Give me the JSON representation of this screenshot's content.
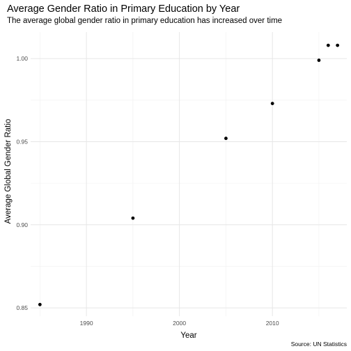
{
  "chart_data": {
    "type": "scatter",
    "title": "Average Gender Ratio in Primary Education by Year",
    "subtitle": "The average global gender ratio in primary education has increased over time",
    "xlabel": "Year",
    "ylabel": "Average Global Gender Ratio",
    "caption": "Source: UN Statistics",
    "xlim": [
      1984,
      2018
    ],
    "ylim": [
      0.845,
      1.016
    ],
    "x_ticks": [
      1990,
      2000,
      2010
    ],
    "x_tick_labels": [
      "1990",
      "2000",
      "2010"
    ],
    "y_ticks": [
      0.85,
      0.9,
      0.95,
      1.0
    ],
    "y_tick_labels": [
      "0.85",
      "0.90",
      "0.95",
      "1.00"
    ],
    "grid": true,
    "point_color": "#000000",
    "points": [
      {
        "x": 1985,
        "y": 0.852
      },
      {
        "x": 1995,
        "y": 0.904
      },
      {
        "x": 2005,
        "y": 0.952
      },
      {
        "x": 2010,
        "y": 0.973
      },
      {
        "x": 2015,
        "y": 0.999
      },
      {
        "x": 2016,
        "y": 1.008
      },
      {
        "x": 2017,
        "y": 1.008
      }
    ]
  }
}
